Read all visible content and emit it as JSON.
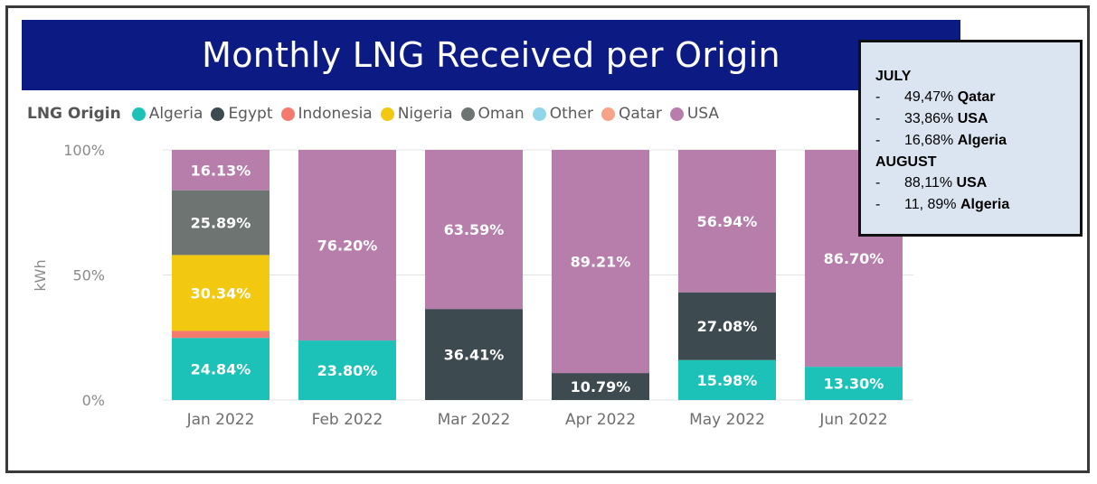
{
  "title": "Monthly LNG Received per Origin",
  "legend": {
    "title": "LNG Origin",
    "items": [
      {
        "label": "Algeria",
        "color": "#1cc2b8"
      },
      {
        "label": "Egypt",
        "color": "#3d4a4f"
      },
      {
        "label": "Indonesia",
        "color": "#f47a6e"
      },
      {
        "label": "Nigeria",
        "color": "#f2c811"
      },
      {
        "label": "Oman",
        "color": "#6d7472"
      },
      {
        "label": "Other",
        "color": "#8fd6ea"
      },
      {
        "label": "Qatar",
        "color": "#f9a28a"
      },
      {
        "label": "USA",
        "color": "#b77dab"
      }
    ]
  },
  "notes": {
    "july_heading": "JULY",
    "july": [
      {
        "dash": "-",
        "value": "49,47%",
        "origin": "Qatar"
      },
      {
        "dash": "-",
        "value": "33,86%",
        "origin": "USA"
      },
      {
        "dash": "-",
        "value": "16,68%",
        "origin": "Algeria"
      }
    ],
    "august_heading": "AUGUST",
    "august": [
      {
        "dash": "-",
        "value": "88,11%",
        "origin": "USA"
      },
      {
        "dash": "-",
        "value": "11, 89%",
        "origin": "Algeria"
      }
    ]
  },
  "chart_data": {
    "type": "bar",
    "stacked": true,
    "title": "Monthly LNG Received per Origin",
    "ylabel": "kWh",
    "ylim": [
      0,
      100
    ],
    "yticks": [
      "0%",
      "50%",
      "100%"
    ],
    "categories": [
      "Jan 2022",
      "Feb 2022",
      "Mar 2022",
      "Apr 2022",
      "May 2022",
      "Jun 2022"
    ],
    "series": [
      {
        "name": "Algeria",
        "color": "#1cc2b8",
        "values": [
          24.84,
          23.8,
          0,
          0,
          15.98,
          13.3
        ],
        "labels": [
          "24.84%",
          "23.80%",
          "",
          "",
          "15.98%",
          "13.30%"
        ]
      },
      {
        "name": "Egypt",
        "color": "#3d4a4f",
        "values": [
          0,
          0,
          36.41,
          10.79,
          27.08,
          0
        ],
        "labels": [
          "",
          "",
          "36.41%",
          "10.79%",
          "27.08%",
          ""
        ]
      },
      {
        "name": "Indonesia",
        "color": "#f47a6e",
        "values": [
          2.8,
          0,
          0,
          0,
          0,
          0
        ],
        "labels": [
          "",
          "",
          "",
          "",
          "",
          ""
        ]
      },
      {
        "name": "Nigeria",
        "color": "#f2c811",
        "values": [
          30.34,
          0,
          0,
          0,
          0,
          0
        ],
        "labels": [
          "30.34%",
          "",
          "",
          "",
          "",
          ""
        ]
      },
      {
        "name": "Oman",
        "color": "#6d7472",
        "values": [
          25.89,
          0,
          0,
          0,
          0,
          0
        ],
        "labels": [
          "25.89%",
          "",
          "",
          "",
          "",
          ""
        ]
      },
      {
        "name": "Other",
        "color": "#8fd6ea",
        "values": [
          0,
          0,
          0,
          0,
          0,
          0
        ],
        "labels": [
          "",
          "",
          "",
          "",
          "",
          ""
        ]
      },
      {
        "name": "Qatar",
        "color": "#f9a28a",
        "values": [
          0,
          0,
          0,
          0,
          0,
          0
        ],
        "labels": [
          "",
          "",
          "",
          "",
          "",
          ""
        ]
      },
      {
        "name": "USA",
        "color": "#b77dab",
        "values": [
          16.13,
          76.2,
          63.59,
          89.21,
          56.94,
          86.7
        ],
        "labels": [
          "16.13%",
          "76.20%",
          "63.59%",
          "89.21%",
          "56.94%",
          "86.70%"
        ]
      }
    ],
    "grid": true,
    "legend_position": "top-left"
  }
}
